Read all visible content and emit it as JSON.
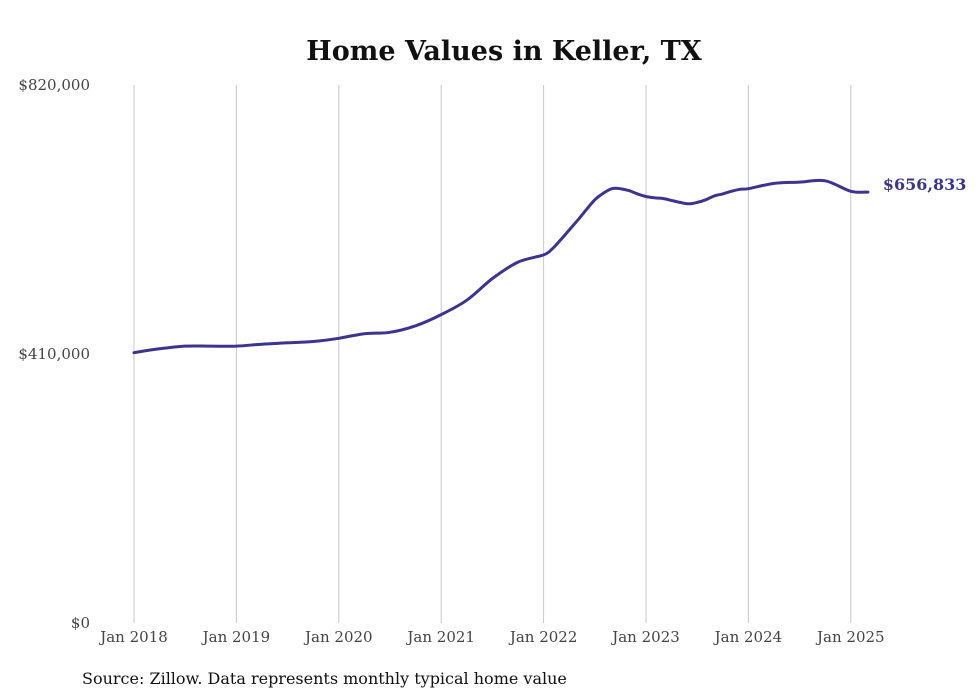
{
  "chart_data": {
    "type": "line",
    "title": "Home Values in Keller, TX",
    "source": "Source: Zillow. Data represents monthly typical home value",
    "xlabel": "",
    "ylabel": "",
    "ylim": [
      0,
      820000
    ],
    "y_ticks": [
      0,
      410000,
      820000
    ],
    "y_tick_labels": [
      "$0",
      "$410,000",
      "$820,000"
    ],
    "x_ticks": [
      "2018-01",
      "2019-01",
      "2020-01",
      "2021-01",
      "2022-01",
      "2023-01",
      "2024-01",
      "2025-01"
    ],
    "x_tick_labels": [
      "Jan 2018",
      "Jan 2019",
      "Jan 2020",
      "Jan 2021",
      "Jan 2022",
      "Jan 2023",
      "Jan 2024",
      "Jan 2025"
    ],
    "grid": "vertical",
    "line_color": "#3d3490",
    "end_label": "$656,833",
    "series": [
      {
        "x": [
          "2018-01",
          "2018-04",
          "2018-07",
          "2018-10",
          "2019-01",
          "2019-04",
          "2019-07",
          "2019-10",
          "2020-01",
          "2020-04",
          "2020-07",
          "2020-10",
          "2021-01",
          "2021-04",
          "2021-07",
          "2021-10",
          "2022-01",
          "2022-02",
          "2022-03",
          "2022-04",
          "2022-05",
          "2022-06",
          "2022-07",
          "2022-08",
          "2022-09",
          "2022-10",
          "2022-11",
          "2022-12",
          "2023-01",
          "2023-02",
          "2023-03",
          "2023-04",
          "2023-05",
          "2023-06",
          "2023-07",
          "2023-08",
          "2023-09",
          "2023-10",
          "2023-11",
          "2023-12",
          "2024-01",
          "2024-04",
          "2024-07",
          "2024-10",
          "2025-01",
          "2025-03"
        ],
        "values": [
          412000,
          418000,
          422000,
          422000,
          422000,
          425000,
          427000,
          429000,
          434000,
          441000,
          443000,
          453000,
          470000,
          492000,
          525000,
          550000,
          561000,
          570000,
          584000,
          599000,
          614000,
          630000,
          645000,
          655000,
          662000,
          662000,
          659000,
          654000,
          650000,
          648000,
          647000,
          644000,
          641000,
          639000,
          641000,
          645000,
          651000,
          654000,
          658000,
          661000,
          662000,
          670000,
          672000,
          674000,
          658000,
          656833
        ]
      }
    ]
  }
}
